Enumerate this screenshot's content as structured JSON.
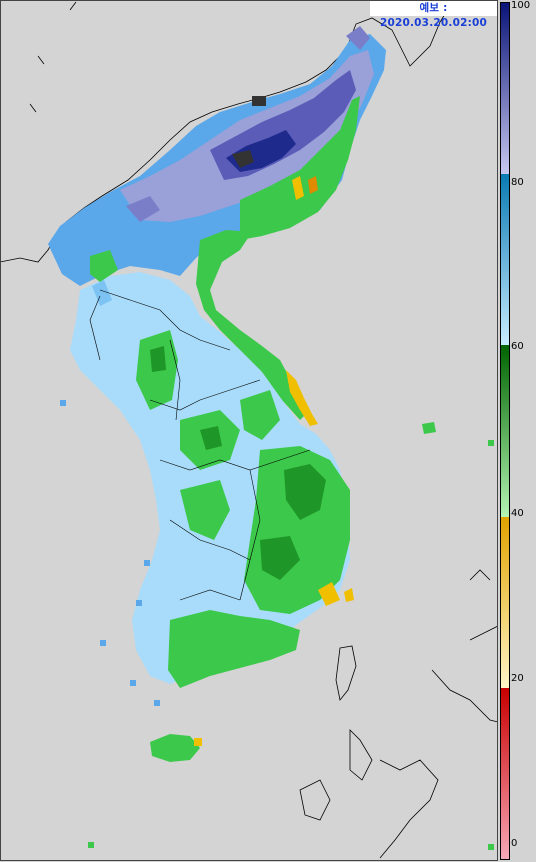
{
  "forecast": {
    "label": "예보 : 2020.03.20.02:00"
  },
  "colorbar": {
    "min": 0,
    "max": 100,
    "ticks": [
      "100",
      "80",
      "60",
      "40",
      "20",
      "0"
    ],
    "bands": [
      {
        "from": 0,
        "to": 20,
        "colors": [
          "#f7a8b8",
          "#c80000"
        ]
      },
      {
        "from": 20,
        "to": 40,
        "colors": [
          "#fff5c8",
          "#e0a400"
        ]
      },
      {
        "from": 40,
        "to": 60,
        "colors": [
          "#b4f5b4",
          "#006400"
        ]
      },
      {
        "from": 60,
        "to": 80,
        "colors": [
          "#c8ecff",
          "#0a7ab4"
        ]
      },
      {
        "from": 80,
        "to": 100,
        "colors": [
          "#c8c8f0",
          "#0a1478"
        ]
      }
    ]
  },
  "colors": {
    "background": "#d4d4d4",
    "deep_blue": "#1e2a8c",
    "light_purple": "#9aa0d8",
    "mid_blue": "#3c8ce6",
    "light_blue": "#a8dcfa",
    "green": "#3cc84a",
    "dark_green": "#1e9628",
    "yellow": "#f0c000"
  }
}
